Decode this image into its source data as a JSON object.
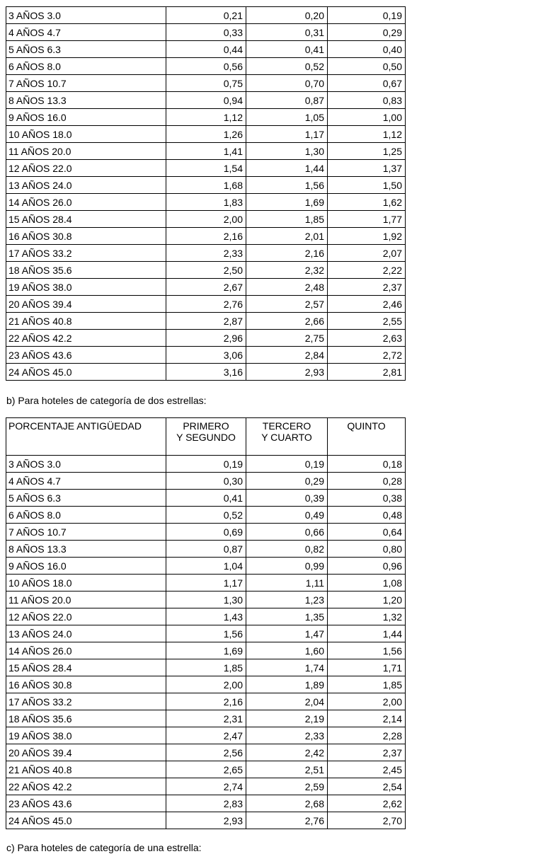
{
  "colors": {
    "background": "#ffffff",
    "text": "#000000",
    "table_border": "#000000"
  },
  "sections": {
    "b_caption": "b) Para hoteles de categoría de dos estrellas:",
    "c_caption": "c) Para hoteles de categoría de una estrella:"
  },
  "table_three_stars_continuation": {
    "note_visible_header": "none (table continues from previous page, only data rows visible)",
    "rows": [
      {
        "label": "3 AÑOS 3.0",
        "values": [
          "0,21",
          "0,20",
          "0,19"
        ]
      },
      {
        "label": "4 AÑOS 4.7",
        "values": [
          "0,33",
          "0,31",
          "0,29"
        ]
      },
      {
        "label": "5 AÑOS 6.3",
        "values": [
          "0,44",
          "0,41",
          "0,40"
        ]
      },
      {
        "label": "6 AÑOS 8.0",
        "values": [
          "0,56",
          "0,52",
          "0,50"
        ]
      },
      {
        "label": "7 AÑOS 10.7",
        "values": [
          "0,75",
          "0,70",
          "0,67"
        ]
      },
      {
        "label": "8 AÑOS 13.3",
        "values": [
          "0,94",
          "0,87",
          "0,83"
        ]
      },
      {
        "label": "9 AÑOS 16.0",
        "values": [
          "1,12",
          "1,05",
          "1,00"
        ]
      },
      {
        "label": "10 AÑOS 18.0",
        "values": [
          "1,26",
          "1,17",
          "1,12"
        ]
      },
      {
        "label": "11 AÑOS 20.0",
        "values": [
          "1,41",
          "1,30",
          "1,25"
        ]
      },
      {
        "label": "12 AÑOS 22.0",
        "values": [
          "1,54",
          "1,44",
          "1,37"
        ]
      },
      {
        "label": "13 AÑOS 24.0",
        "values": [
          "1,68",
          "1,56",
          "1,50"
        ]
      },
      {
        "label": "14 AÑOS 26.0",
        "values": [
          "1,83",
          "1,69",
          "1,62"
        ]
      },
      {
        "label": "15 AÑOS 28.4",
        "values": [
          "2,00",
          "1,85",
          "1,77"
        ]
      },
      {
        "label": "16 AÑOS 30.8",
        "values": [
          "2,16",
          "2,01",
          "1,92"
        ]
      },
      {
        "label": "17 AÑOS 33.2",
        "values": [
          "2,33",
          "2,16",
          "2,07"
        ]
      },
      {
        "label": "18 AÑOS 35.6",
        "values": [
          "2,50",
          "2,32",
          "2,22"
        ]
      },
      {
        "label": "19 AÑOS 38.0",
        "values": [
          "2,67",
          "2,48",
          "2,37"
        ]
      },
      {
        "label": "20 AÑOS 39.4",
        "values": [
          "2,76",
          "2,57",
          "2,46"
        ]
      },
      {
        "label": "21 AÑOS 40.8",
        "values": [
          "2,87",
          "2,66",
          "2,55"
        ]
      },
      {
        "label": "22 AÑOS 42.2",
        "values": [
          "2,96",
          "2,75",
          "2,63"
        ]
      },
      {
        "label": "23 AÑOS 43.6",
        "values": [
          "3,06",
          "2,84",
          "2,72"
        ]
      },
      {
        "label": "24 AÑOS 45.0",
        "values": [
          "3,16",
          "2,93",
          "2,81"
        ]
      }
    ]
  },
  "table_two_stars": {
    "headers": [
      {
        "lines": [
          "PORCENTAJE ANTIGÜEDAD"
        ]
      },
      {
        "lines": [
          "PRIMERO",
          "Y SEGUNDO"
        ]
      },
      {
        "lines": [
          "TERCERO",
          "Y CUARTO"
        ]
      },
      {
        "lines": [
          "QUINTO"
        ]
      }
    ],
    "rows": [
      {
        "label": "3 AÑOS 3.0",
        "values": [
          "0,19",
          "0,19",
          "0,18"
        ]
      },
      {
        "label": "4 AÑOS 4.7",
        "values": [
          "0,30",
          "0,29",
          "0,28"
        ]
      },
      {
        "label": "5 AÑOS 6.3",
        "values": [
          "0,41",
          "0,39",
          "0,38"
        ]
      },
      {
        "label": "6 AÑOS 8.0",
        "values": [
          "0,52",
          "0,49",
          "0,48"
        ]
      },
      {
        "label": "7 AÑOS 10.7",
        "values": [
          "0,69",
          "0,66",
          "0,64"
        ]
      },
      {
        "label": "8 AÑOS 13.3",
        "values": [
          "0,87",
          "0,82",
          "0,80"
        ]
      },
      {
        "label": "9 AÑOS 16.0",
        "values": [
          "1,04",
          "0,99",
          "0,96"
        ]
      },
      {
        "label": "10 AÑOS 18.0",
        "values": [
          "1,17",
          "1,11",
          "1,08"
        ]
      },
      {
        "label": "11 AÑOS 20.0",
        "values": [
          "1,30",
          "1,23",
          "1,20"
        ]
      },
      {
        "label": "12 AÑOS 22.0",
        "values": [
          "1,43",
          "1,35",
          "1,32"
        ]
      },
      {
        "label": "13 AÑOS 24.0",
        "values": [
          "1,56",
          "1,47",
          "1,44"
        ]
      },
      {
        "label": "14 AÑOS 26.0",
        "values": [
          "1,69",
          "1,60",
          "1,56"
        ]
      },
      {
        "label": "15 AÑOS 28.4",
        "values": [
          "1,85",
          "1,74",
          "1,71"
        ]
      },
      {
        "label": "16 AÑOS 30.8",
        "values": [
          "2,00",
          "1,89",
          "1,85"
        ]
      },
      {
        "label": "17 AÑOS 33.2",
        "values": [
          "2,16",
          "2,04",
          "2,00"
        ]
      },
      {
        "label": "18 AÑOS 35.6",
        "values": [
          "2,31",
          "2,19",
          "2,14"
        ]
      },
      {
        "label": "19 AÑOS 38.0",
        "values": [
          "2,47",
          "2,33",
          "2,28"
        ]
      },
      {
        "label": "20 AÑOS 39.4",
        "values": [
          "2,56",
          "2,42",
          "2,37"
        ]
      },
      {
        "label": "21 AÑOS 40.8",
        "values": [
          "2,65",
          "2,51",
          "2,45"
        ]
      },
      {
        "label": "22 AÑOS 42.2",
        "values": [
          "2,74",
          "2,59",
          "2,54"
        ]
      },
      {
        "label": "23 AÑOS 43.6",
        "values": [
          "2,83",
          "2,68",
          "2,62"
        ]
      },
      {
        "label": "24 AÑOS 45.0",
        "values": [
          "2,93",
          "2,76",
          "2,70"
        ]
      }
    ]
  }
}
